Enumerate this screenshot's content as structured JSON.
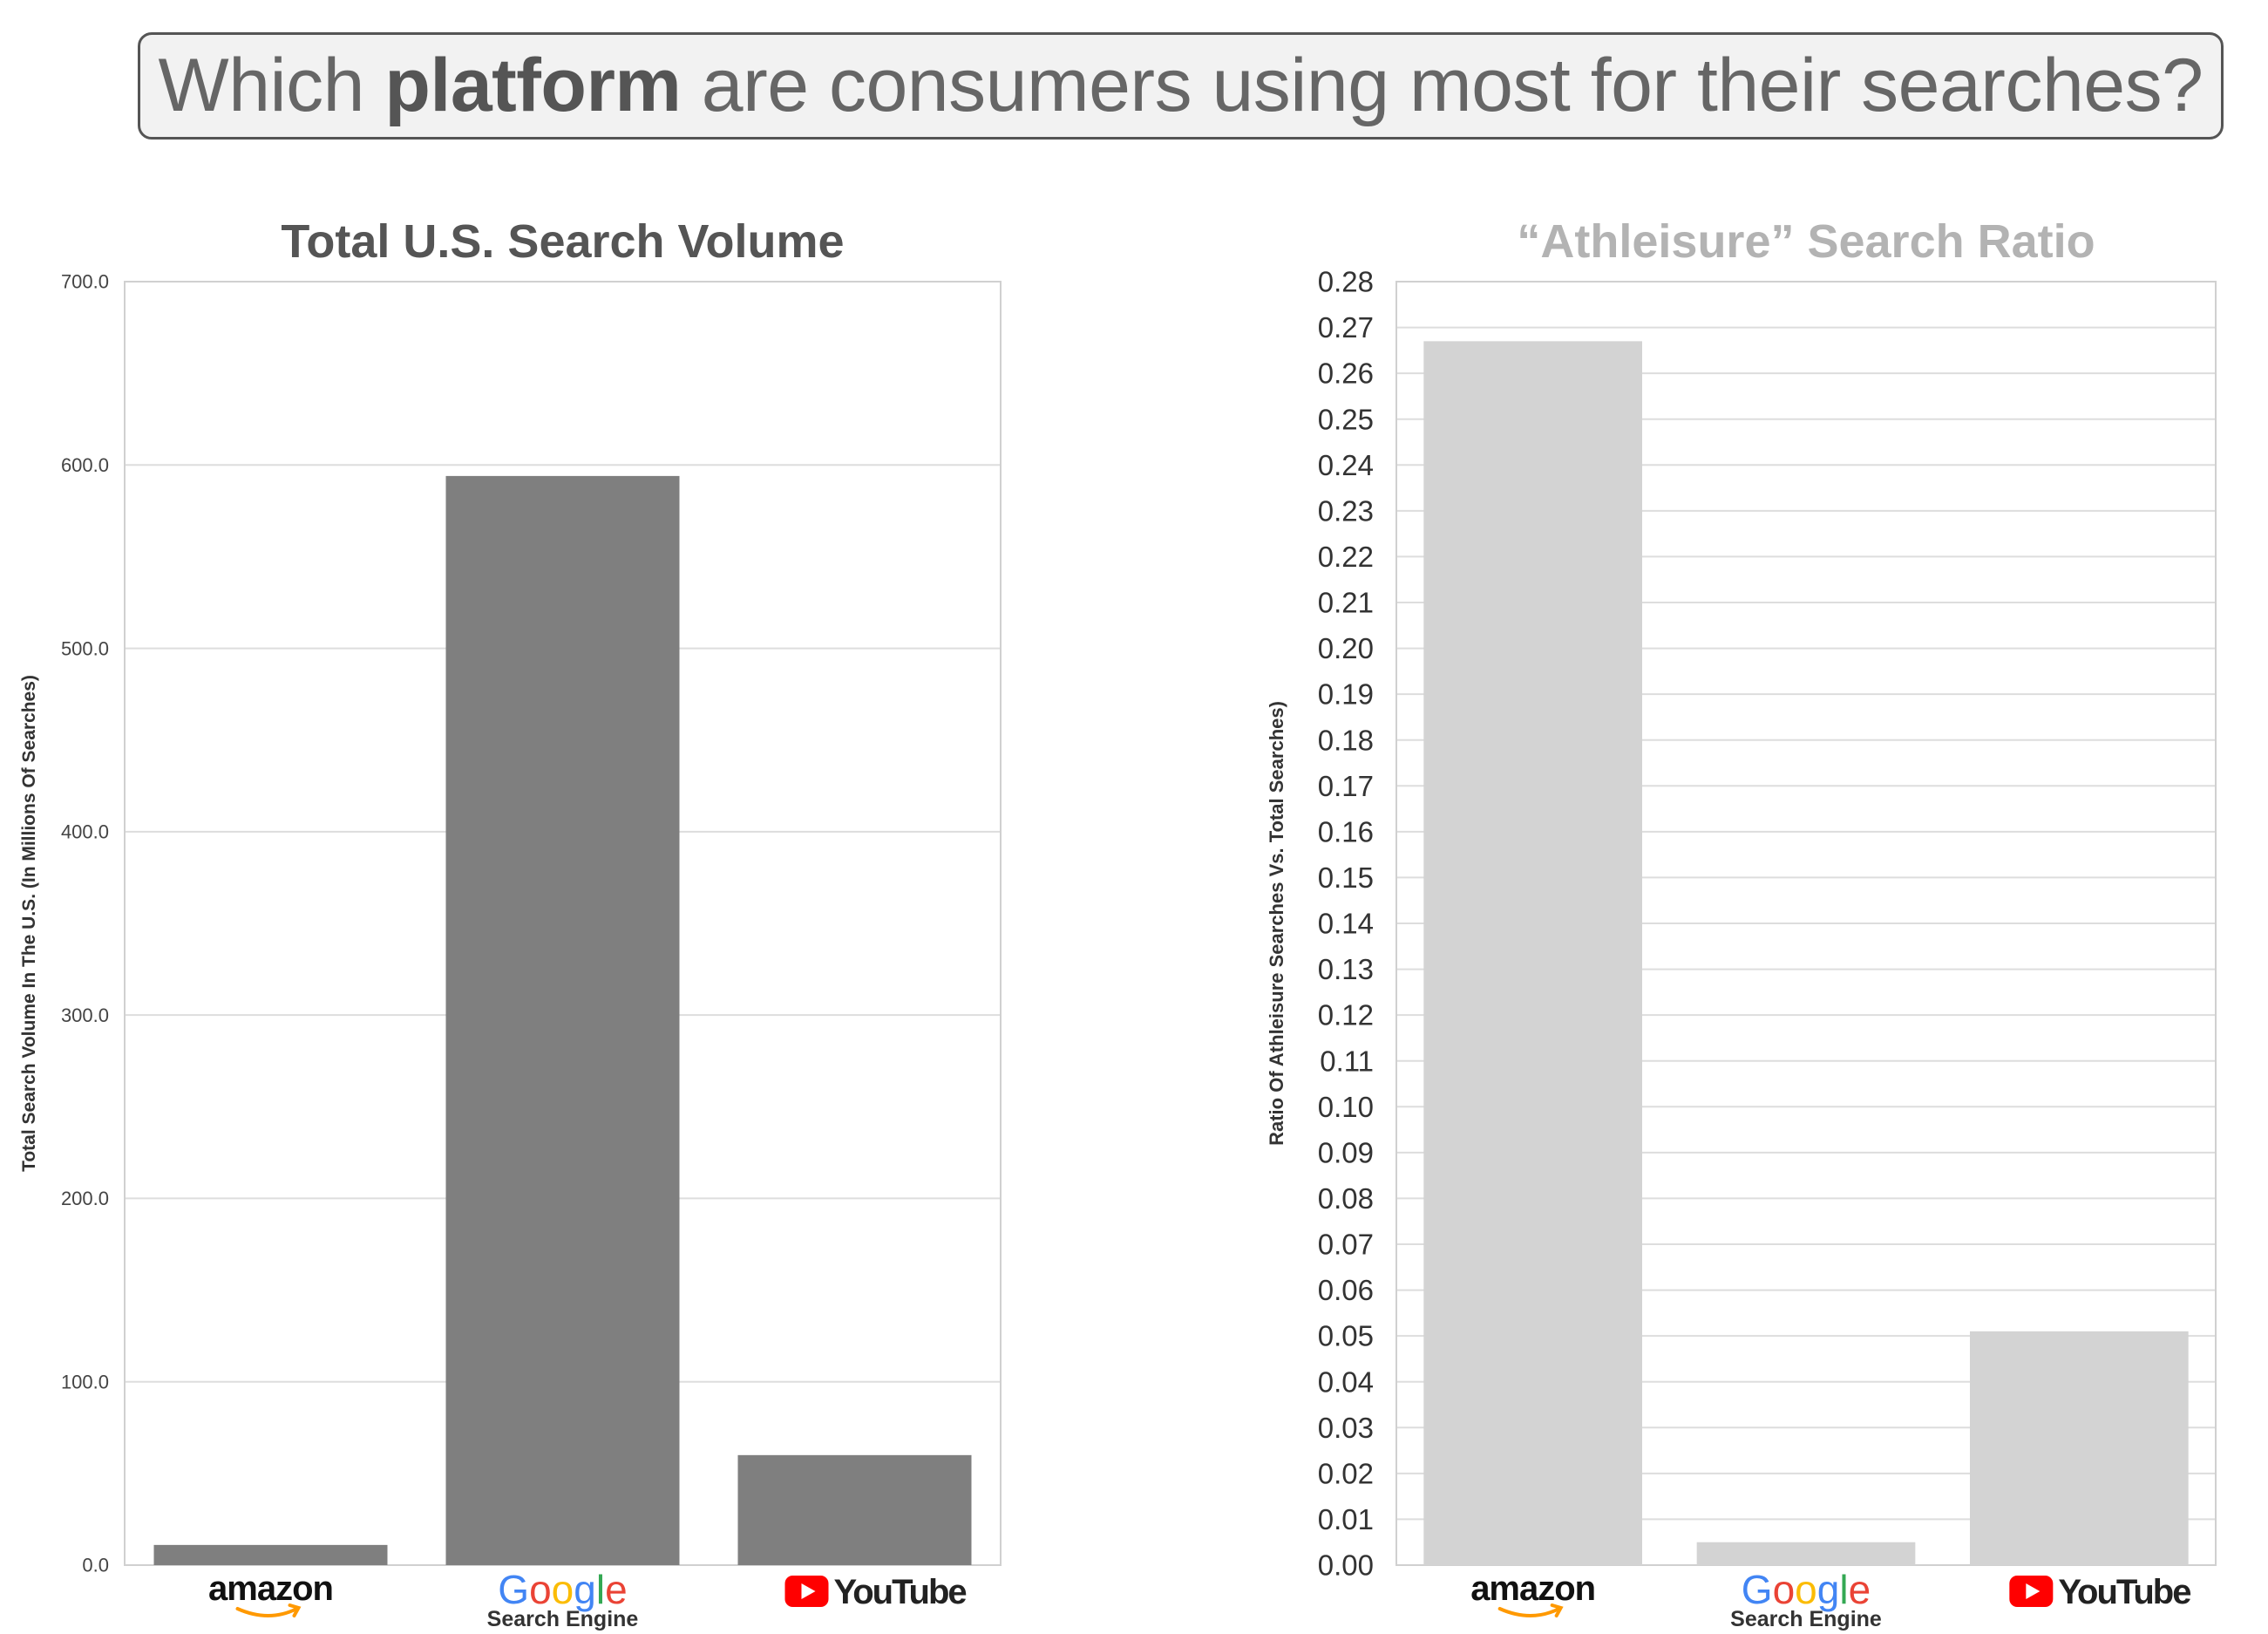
{
  "headline": {
    "part1": "Which ",
    "bold": "platform",
    "part2": " are consumers using most for their searches?"
  },
  "colors": {
    "headline_text": "#666666",
    "headline_border": "#555555",
    "headline_bg": "#f2f2f2",
    "left_bars": "#7f7f7f",
    "right_bars": "#d3d3d3",
    "left_title": "#555555",
    "right_title": "#b3b3b3",
    "grid": "#dddddd",
    "amazon_smile": "#ff9900",
    "google_blue": "#4285f4",
    "google_red": "#ea4335",
    "google_yellow": "#fbbc05",
    "google_green": "#34a853",
    "youtube_red": "#ff0000"
  },
  "chart_data": [
    {
      "type": "bar",
      "title": "Total U.S. Search Volume",
      "xlabel": "Search Engine",
      "ylabel": "Total Search Volume In The U.S. (In Millions Of Searches)",
      "categories": [
        "amazon",
        "Google",
        "YouTube"
      ],
      "category_icons": [
        "amazon-logo",
        "google-logo",
        "youtube-logo"
      ],
      "values": [
        11,
        594,
        60
      ],
      "ylim": [
        0,
        700
      ],
      "yticks": [
        "0.0",
        "100.0",
        "200.0",
        "300.0",
        "400.0",
        "500.0",
        "600.0",
        "700.0"
      ],
      "grid": true
    },
    {
      "type": "bar",
      "title": "“Athleisure” Search Ratio",
      "xlabel": "Search Engine",
      "ylabel": "Ratio Of Athleisure Searches Vs. Total Searches)",
      "categories": [
        "amazon",
        "Google",
        "YouTube"
      ],
      "category_icons": [
        "amazon-logo",
        "google-logo",
        "youtube-logo"
      ],
      "values": [
        0.267,
        0.005,
        0.051
      ],
      "ylim": [
        0,
        0.28
      ],
      "yticks": [
        "0.00",
        "0.01",
        "0.02",
        "0.03",
        "0.04",
        "0.05",
        "0.06",
        "0.07",
        "0.08",
        "0.09",
        "0.10",
        "0.11",
        "0.12",
        "0.13",
        "0.14",
        "0.15",
        "0.16",
        "0.17",
        "0.18",
        "0.19",
        "0.20",
        "0.21",
        "0.22",
        "0.23",
        "0.24",
        "0.25",
        "0.26",
        "0.27",
        "0.28"
      ],
      "grid": true
    }
  ]
}
